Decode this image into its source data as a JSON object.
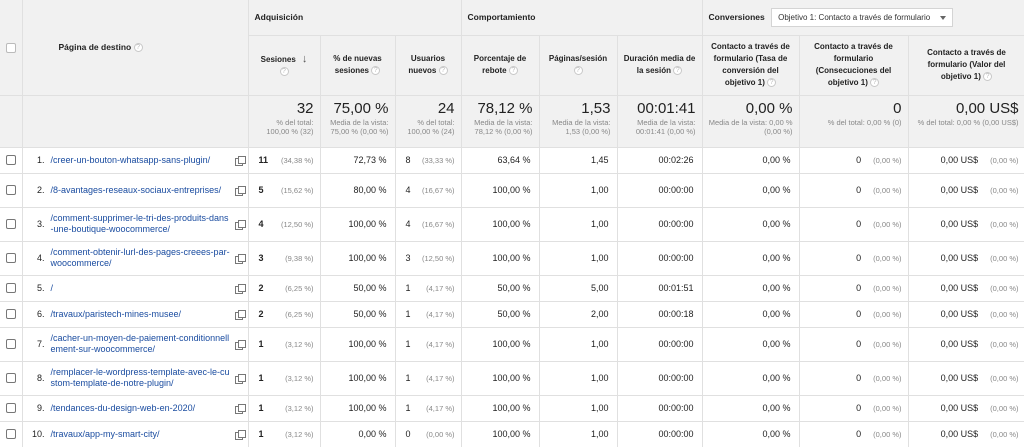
{
  "groups": {
    "acquisition": "Adquisición",
    "behavior": "Comportamiento",
    "conversions": "Conversiones",
    "objective_select": "Objetivo 1: Contacto a través de formulario"
  },
  "columns": {
    "landing_page": "Página de destino",
    "sessions": "Sesiones",
    "new_sessions_pct": "% de nuevas sesiones",
    "new_users": "Usuarios nuevos",
    "bounce_rate": "Porcentaje de rebote",
    "pages_per_session": "Páginas/sesión",
    "avg_duration": "Duración media de la sesión",
    "conv_rate": "Contacto a través de formulario (Tasa de conversión del objetivo 1)",
    "conv_completions": "Contacto a través de formulario (Consecuciones del objetivo 1)",
    "conv_value": "Contacto a través de formulario (Valor del objetivo 1)"
  },
  "help_icon": "?",
  "totals": {
    "sessions": "32",
    "sessions_sub": "% del total: 100,00 % (32)",
    "new_sessions_pct": "75,00 %",
    "new_sessions_pct_sub": "Media de la vista: 75,00 % (0,00 %)",
    "new_users": "24",
    "new_users_sub": "% del total: 100,00 % (24)",
    "bounce_rate": "78,12 %",
    "bounce_rate_sub": "Media de la vista: 78,12 % (0,00 %)",
    "pages_per_session": "1,53",
    "pages_per_session_sub": "Media de la vista: 1,53 (0,00 %)",
    "avg_duration": "00:01:41",
    "avg_duration_sub": "Media de la vista: 00:01:41 (0,00 %)",
    "conv_rate": "0,00 %",
    "conv_rate_sub": "Media de la vista: 0,00 % (0,00 %)",
    "conv_completions": "0",
    "conv_completions_sub": "% del total: 0,00 % (0)",
    "conv_value": "0,00 US$",
    "conv_value_sub": "% del total: 0,00 % (0,00 US$)"
  },
  "rows": [
    {
      "idx": "1.",
      "page": "/creer-un-bouton-whatsapp-sans-plugin/",
      "sessions": "11",
      "sessions_pct": "(34,38 %)",
      "new_sessions_pct": "72,73 %",
      "new_users": "8",
      "new_users_pct": "(33,33 %)",
      "bounce_rate": "63,64 %",
      "pages_per_session": "1,45",
      "avg_duration": "00:02:26",
      "conv_rate": "0,00 %",
      "conv_completions": "0",
      "conv_completions_pct": "(0,00 %)",
      "conv_value": "0,00 US$",
      "conv_value_pct": "(0,00 %)"
    },
    {
      "idx": "2.",
      "page": "/8-avantages-reseaux-sociaux-entreprises/",
      "sessions": "5",
      "sessions_pct": "(15,62 %)",
      "new_sessions_pct": "80,00 %",
      "new_users": "4",
      "new_users_pct": "(16,67 %)",
      "bounce_rate": "100,00 %",
      "pages_per_session": "1,00",
      "avg_duration": "00:00:00",
      "conv_rate": "0,00 %",
      "conv_completions": "0",
      "conv_completions_pct": "(0,00 %)",
      "conv_value": "0,00 US$",
      "conv_value_pct": "(0,00 %)"
    },
    {
      "idx": "3.",
      "page": "/comment-supprimer-le-tri-des-produits-dans-une-boutique-woocommerce/",
      "sessions": "4",
      "sessions_pct": "(12,50 %)",
      "new_sessions_pct": "100,00 %",
      "new_users": "4",
      "new_users_pct": "(16,67 %)",
      "bounce_rate": "100,00 %",
      "pages_per_session": "1,00",
      "avg_duration": "00:00:00",
      "conv_rate": "0,00 %",
      "conv_completions": "0",
      "conv_completions_pct": "(0,00 %)",
      "conv_value": "0,00 US$",
      "conv_value_pct": "(0,00 %)"
    },
    {
      "idx": "4.",
      "page": "/comment-obtenir-lurl-des-pages-creees-par-woocommerce/",
      "sessions": "3",
      "sessions_pct": "(9,38 %)",
      "new_sessions_pct": "100,00 %",
      "new_users": "3",
      "new_users_pct": "(12,50 %)",
      "bounce_rate": "100,00 %",
      "pages_per_session": "1,00",
      "avg_duration": "00:00:00",
      "conv_rate": "0,00 %",
      "conv_completions": "0",
      "conv_completions_pct": "(0,00 %)",
      "conv_value": "0,00 US$",
      "conv_value_pct": "(0,00 %)"
    },
    {
      "idx": "5.",
      "page": "/",
      "sessions": "2",
      "sessions_pct": "(6,25 %)",
      "new_sessions_pct": "50,00 %",
      "new_users": "1",
      "new_users_pct": "(4,17 %)",
      "bounce_rate": "50,00 %",
      "pages_per_session": "5,00",
      "avg_duration": "00:01:51",
      "conv_rate": "0,00 %",
      "conv_completions": "0",
      "conv_completions_pct": "(0,00 %)",
      "conv_value": "0,00 US$",
      "conv_value_pct": "(0,00 %)"
    },
    {
      "idx": "6.",
      "page": "/travaux/paristech-mines-musee/",
      "sessions": "2",
      "sessions_pct": "(6,25 %)",
      "new_sessions_pct": "50,00 %",
      "new_users": "1",
      "new_users_pct": "(4,17 %)",
      "bounce_rate": "50,00 %",
      "pages_per_session": "2,00",
      "avg_duration": "00:00:18",
      "conv_rate": "0,00 %",
      "conv_completions": "0",
      "conv_completions_pct": "(0,00 %)",
      "conv_value": "0,00 US$",
      "conv_value_pct": "(0,00 %)"
    },
    {
      "idx": "7.",
      "page": "/cacher-un-moyen-de-paiement-conditionnellement-sur-woocommerce/",
      "sessions": "1",
      "sessions_pct": "(3,12 %)",
      "new_sessions_pct": "100,00 %",
      "new_users": "1",
      "new_users_pct": "(4,17 %)",
      "bounce_rate": "100,00 %",
      "pages_per_session": "1,00",
      "avg_duration": "00:00:00",
      "conv_rate": "0,00 %",
      "conv_completions": "0",
      "conv_completions_pct": "(0,00 %)",
      "conv_value": "0,00 US$",
      "conv_value_pct": "(0,00 %)"
    },
    {
      "idx": "8.",
      "page": "/remplacer-le-wordpress-template-avec-le-custom-template-de-notre-plugin/",
      "sessions": "1",
      "sessions_pct": "(3,12 %)",
      "new_sessions_pct": "100,00 %",
      "new_users": "1",
      "new_users_pct": "(4,17 %)",
      "bounce_rate": "100,00 %",
      "pages_per_session": "1,00",
      "avg_duration": "00:00:00",
      "conv_rate": "0,00 %",
      "conv_completions": "0",
      "conv_completions_pct": "(0,00 %)",
      "conv_value": "0,00 US$",
      "conv_value_pct": "(0,00 %)"
    },
    {
      "idx": "9.",
      "page": "/tendances-du-design-web-en-2020/",
      "sessions": "1",
      "sessions_pct": "(3,12 %)",
      "new_sessions_pct": "100,00 %",
      "new_users": "1",
      "new_users_pct": "(4,17 %)",
      "bounce_rate": "100,00 %",
      "pages_per_session": "1,00",
      "avg_duration": "00:00:00",
      "conv_rate": "0,00 %",
      "conv_completions": "0",
      "conv_completions_pct": "(0,00 %)",
      "conv_value": "0,00 US$",
      "conv_value_pct": "(0,00 %)"
    },
    {
      "idx": "10.",
      "page": "/travaux/app-my-smart-city/",
      "sessions": "1",
      "sessions_pct": "(3,12 %)",
      "new_sessions_pct": "0,00 %",
      "new_users": "0",
      "new_users_pct": "(0,00 %)",
      "bounce_rate": "100,00 %",
      "pages_per_session": "1,00",
      "avg_duration": "00:00:00",
      "conv_rate": "0,00 %",
      "conv_completions": "0",
      "conv_completions_pct": "(0,00 %)",
      "conv_value": "0,00 US$",
      "conv_value_pct": "(0,00 %)"
    }
  ]
}
